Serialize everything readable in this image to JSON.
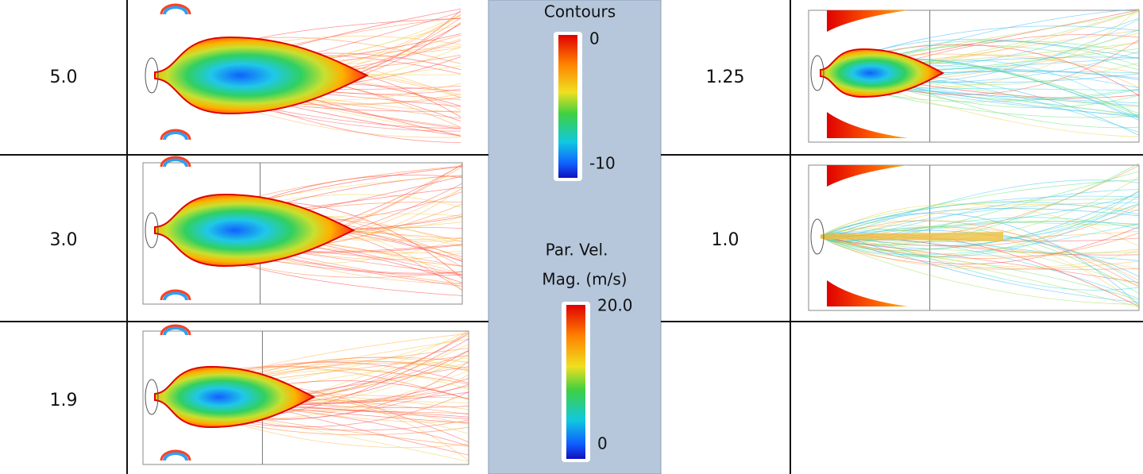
{
  "rows": [
    {
      "label": "5.0"
    },
    {
      "label": "3.0"
    },
    {
      "label": "1.9"
    },
    {
      "label": "1.25"
    },
    {
      "label": "1.0"
    }
  ],
  "legend": {
    "contours": {
      "title": "Contours",
      "top": "0",
      "bottom": "-10"
    },
    "velocity": {
      "title_line1": "Par. Vel.",
      "title_line2": "Mag. (m/s)",
      "top": "20.0",
      "bottom": "0"
    }
  }
}
